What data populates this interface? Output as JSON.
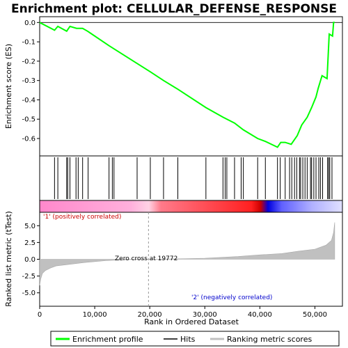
{
  "chart_data": {
    "type": "line",
    "title": "Enrichment plot: CELLULAR_DEFENSE_RESPONSE",
    "top_panel": {
      "ylabel": "Enrichment score (ES)",
      "ylim": [
        -0.69,
        0.03
      ],
      "yticks": [
        0.0,
        -0.1,
        -0.2,
        -0.3,
        -0.4,
        -0.5,
        -0.6
      ],
      "ytick_labels": [
        "0.0",
        "-0.1",
        "-0.2",
        "-0.3",
        "-0.4",
        "-0.5",
        "-0.6"
      ],
      "series": [
        {
          "name": "Enrichment profile",
          "color": "#00ff00",
          "x": [
            0,
            2700,
            3300,
            4900,
            5500,
            6700,
            7800,
            8700,
            12600,
            17600,
            20100,
            22500,
            25100,
            30200,
            33300,
            35400,
            37000,
            39600,
            41000,
            43200,
            43800,
            44600,
            45700,
            46800,
            47600,
            48600,
            49400,
            50200,
            50600,
            51300,
            52200,
            52600,
            53200,
            53400,
            53600
          ],
          "y": [
            0.0,
            -0.04,
            -0.02,
            -0.045,
            -0.02,
            -0.03,
            -0.03,
            -0.045,
            -0.12,
            -0.21,
            -0.255,
            -0.3,
            -0.345,
            -0.44,
            -0.49,
            -0.52,
            -0.555,
            -0.6,
            -0.615,
            -0.645,
            -0.62,
            -0.62,
            -0.63,
            -0.585,
            -0.53,
            -0.49,
            -0.44,
            -0.385,
            -0.34,
            -0.275,
            -0.29,
            -0.06,
            -0.07,
            0.0,
            0.0
          ]
        }
      ]
    },
    "hits_panel": {
      "name": "Hits",
      "x": [
        2700,
        3300,
        4900,
        5100,
        5500,
        6600,
        7000,
        7800,
        8800,
        12600,
        13200,
        13500,
        17700,
        20100,
        22500,
        25100,
        30200,
        33300,
        33700,
        34000,
        35400,
        36600,
        37000,
        39600,
        41000,
        43200,
        43700,
        44600,
        45400,
        45800,
        46300,
        46700,
        47200,
        47400,
        47800,
        48200,
        48600,
        49200,
        49400,
        49800,
        50200,
        50700,
        51000,
        51400,
        52300,
        52500,
        52700,
        53100
      ]
    },
    "color_bar": {
      "positive_label": "'1' (positively correlated)",
      "negative_label": "'2' (negatively correlated)"
    },
    "bottom_panel": {
      "ylabel": "Ranked list metric (tTest)",
      "ylim": [
        -7,
        7
      ],
      "yticks": [
        5.0,
        2.5,
        0.0,
        -2.5,
        -5.0
      ],
      "ytick_labels": [
        "5.0",
        "2.5",
        "0.0",
        "-2.5",
        "-5.0"
      ],
      "zero_cross_label": "Zero cross at 19772",
      "zero_cross_x": 19772,
      "series": [
        {
          "name": "Ranking metric scores",
          "color": "#c0c0c0",
          "x": [
            0,
            200,
            500,
            1000,
            2000,
            3000,
            5000,
            8000,
            12000,
            16000,
            19772,
            24000,
            30000,
            36000,
            40000,
            44000,
            47000,
            50000,
            52000,
            53000,
            53400,
            53600
          ],
          "y": [
            -3.9,
            -2.9,
            -2.1,
            -1.7,
            -1.3,
            -1.0,
            -0.8,
            -0.5,
            -0.2,
            -0.05,
            0.0,
            0.05,
            0.15,
            0.4,
            0.65,
            0.85,
            1.2,
            1.5,
            2.1,
            2.8,
            4.0,
            5.5
          ]
        }
      ]
    },
    "xlabel": "Rank in Ordered Dataset",
    "xlim": [
      0,
      55000
    ],
    "xticks": [
      0,
      10000,
      20000,
      30000,
      40000,
      50000
    ],
    "xtick_labels": [
      "0",
      "10,000",
      "20,000",
      "30,000",
      "40,000",
      "50,000"
    ],
    "legend": {
      "placement": "bottom",
      "entries": [
        "Enrichment profile",
        "Hits",
        "Ranking metric scores"
      ]
    }
  }
}
